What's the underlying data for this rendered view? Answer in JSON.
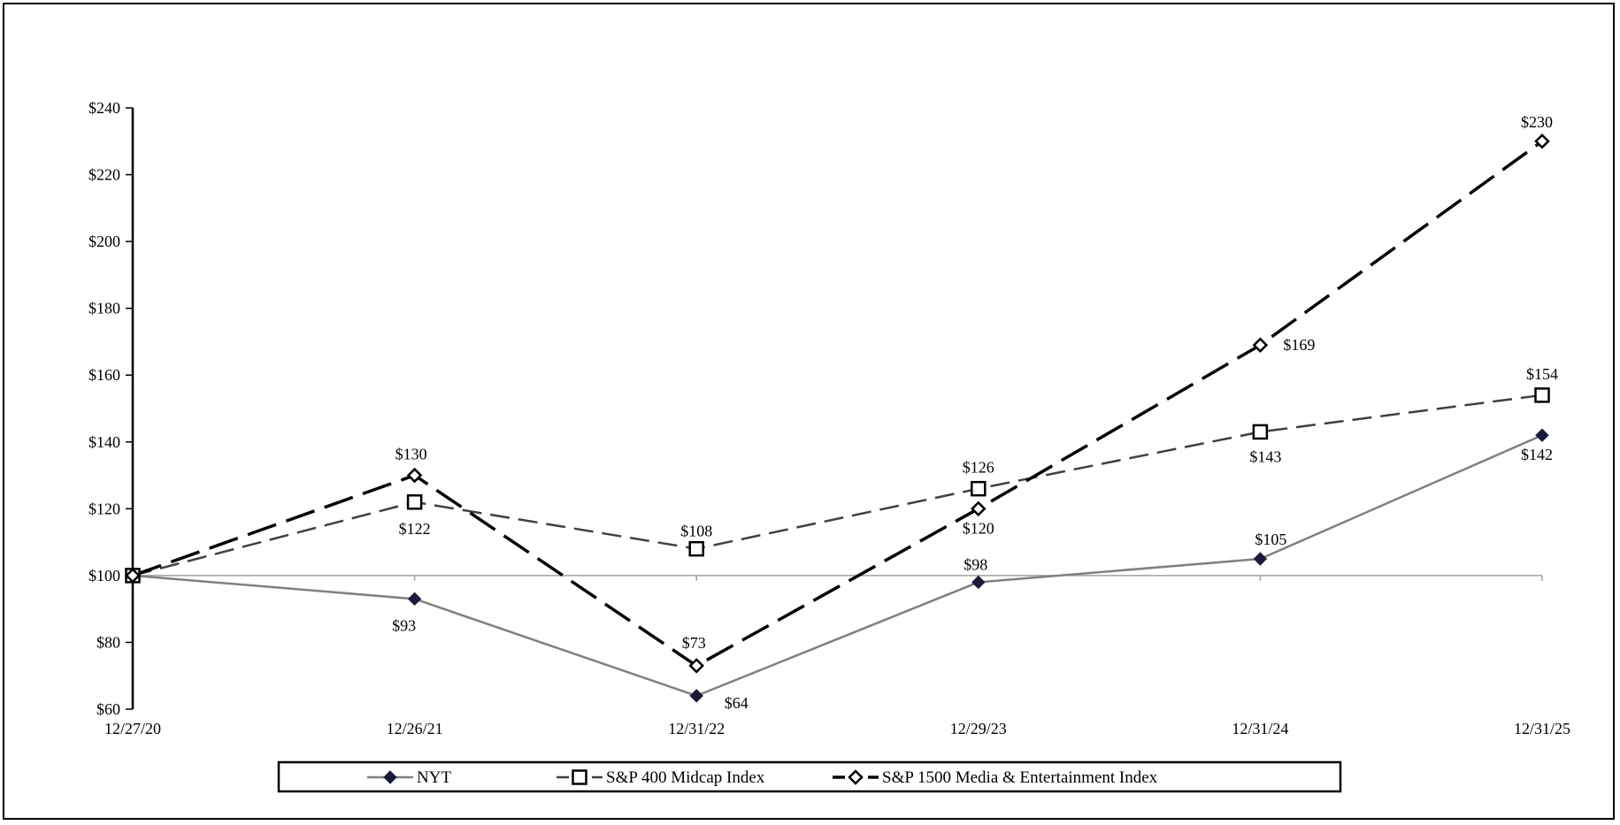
{
  "chart_data": {
    "type": "line",
    "categories": [
      "12/27/20",
      "12/26/21",
      "12/31/22",
      "12/29/23",
      "12/31/24",
      "12/31/25"
    ],
    "ylim": [
      60,
      240
    ],
    "yticks": [
      60,
      80,
      100,
      120,
      140,
      160,
      180,
      200,
      220,
      240
    ],
    "ytick_labels": [
      "$60",
      "$80",
      "$100",
      "$120",
      "$140",
      "$160",
      "$180",
      "$200",
      "$220",
      "$240"
    ],
    "baseline": 100,
    "grid": false,
    "legend_position": "bottom",
    "series": [
      {
        "name": "NYT",
        "values": [
          100,
          93,
          64,
          98,
          105,
          142
        ],
        "labels": [
          "",
          "$93",
          "$64",
          "$98",
          "$105",
          "$142"
        ],
        "color": "#808080",
        "marker": "filled-diamond",
        "marker_color": "#1a1a3a",
        "line_style": "solid"
      },
      {
        "name": "S&P 400 Midcap Index",
        "values": [
          100,
          122,
          108,
          126,
          143,
          154
        ],
        "labels": [
          "",
          "$122",
          "$108",
          "$126",
          "$143",
          "$154"
        ],
        "color": "#404040",
        "marker": "open-square",
        "line_style": "dashed"
      },
      {
        "name": "S&P 1500 Media & Entertainment Index",
        "values": [
          100,
          130,
          73,
          120,
          169,
          230
        ],
        "labels": [
          "",
          "$130",
          "$73",
          "$120",
          "$169",
          "$230"
        ],
        "color": "#000000",
        "marker": "open-diamond",
        "line_style": "long-dashed"
      }
    ]
  }
}
